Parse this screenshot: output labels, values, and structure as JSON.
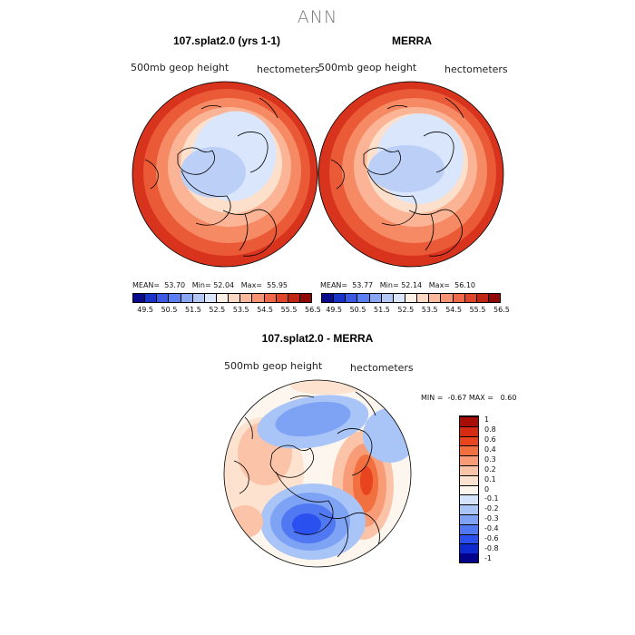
{
  "title": "ANN",
  "panels": [
    {
      "title": "107.splat2.0 (yrs 1-1)",
      "field": "500mb geop height",
      "units": "hectometers",
      "stats": {
        "mean_label": "MEAN=",
        "mean": "53.70",
        "min_label": "Min=",
        "min": "52.04",
        "max_label": "Max=",
        "max": "55.95"
      }
    },
    {
      "title": "MERRA",
      "field": "500mb geop height",
      "units": "hectometers",
      "stats": {
        "mean_label": "MEAN=",
        "mean": "53.77",
        "min_label": "Min=",
        "min": "52.14",
        "max_label": "Max=",
        "max": "56.10"
      }
    }
  ],
  "colorbar_horizontal": {
    "colors": [
      "#0a0a8c",
      "#1a33c8",
      "#3a5ae6",
      "#5b7ff0",
      "#88a6f2",
      "#b3c8f6",
      "#d9e6fb",
      "#fdf1e6",
      "#fdd9c4",
      "#fbb89c",
      "#f79272",
      "#ef6a4b",
      "#e0452a",
      "#c02614",
      "#8f0a07"
    ],
    "labels": [
      "49.5",
      "50.5",
      "51.5",
      "52.5",
      "53.5",
      "54.5",
      "55.5",
      "56.5"
    ]
  },
  "diff_panel": {
    "title": "107.splat2.0 - MERRA",
    "field": "500mb geop height",
    "units": "hectometers",
    "stats": {
      "min_label": "MIN =",
      "min": "-0.67",
      "max_label": "MAX =",
      "max": "0.60"
    }
  },
  "colorbar_vertical": {
    "colors": [
      "#02028c",
      "#0d2bd0",
      "#2b50f0",
      "#4f78f2",
      "#7fa3f4",
      "#a9c4f7",
      "#d4e3fb",
      "#fdf6ee",
      "#fde2cf",
      "#fbc3a7",
      "#f89c78",
      "#f2703f",
      "#e84420",
      "#d62a12",
      "#a80d06"
    ],
    "labels": [
      "-1",
      "-0.8",
      "-0.6",
      "-0.4",
      "-0.3",
      "-0.2",
      "-0.1",
      "0",
      "0.1",
      "0.2",
      "0.3",
      "0.4",
      "0.6",
      "0.8",
      "1"
    ]
  }
}
